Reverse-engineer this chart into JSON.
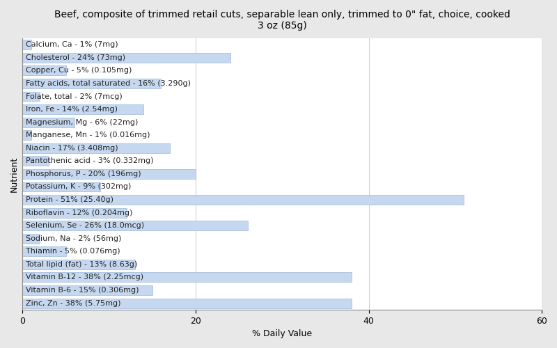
{
  "title": "Beef, composite of trimmed retail cuts, separable lean only, trimmed to 0\" fat, choice, cooked\n3 oz (85g)",
  "xlabel": "% Daily Value",
  "ylabel": "Nutrient",
  "xlim": [
    0,
    60
  ],
  "xticks": [
    0,
    20,
    40,
    60
  ],
  "bar_color": "#c5d8f0",
  "bar_edge_color": "#a0b8d8",
  "background_color": "#e8e8e8",
  "plot_background_color": "#ffffff",
  "nutrients": [
    "Calcium, Ca - 1% (7mg)",
    "Cholesterol - 24% (73mg)",
    "Copper, Cu - 5% (0.105mg)",
    "Fatty acids, total saturated - 16% (3.290g)",
    "Folate, total - 2% (7mcg)",
    "Iron, Fe - 14% (2.54mg)",
    "Magnesium, Mg - 6% (22mg)",
    "Manganese, Mn - 1% (0.016mg)",
    "Niacin - 17% (3.408mg)",
    "Pantothenic acid - 3% (0.332mg)",
    "Phosphorus, P - 20% (196mg)",
    "Potassium, K - 9% (302mg)",
    "Protein - 51% (25.40g)",
    "Riboflavin - 12% (0.204mg)",
    "Selenium, Se - 26% (18.0mcg)",
    "Sodium, Na - 2% (56mg)",
    "Thiamin - 5% (0.076mg)",
    "Total lipid (fat) - 13% (8.63g)",
    "Vitamin B-12 - 38% (2.25mcg)",
    "Vitamin B-6 - 15% (0.306mg)",
    "Zinc, Zn - 38% (5.75mg)"
  ],
  "values": [
    1,
    24,
    5,
    16,
    2,
    14,
    6,
    1,
    17,
    3,
    20,
    9,
    51,
    12,
    26,
    2,
    5,
    13,
    38,
    15,
    38
  ],
  "title_fontsize": 10,
  "axis_fontsize": 9,
  "tick_fontsize": 9,
  "bar_label_fontsize": 8
}
